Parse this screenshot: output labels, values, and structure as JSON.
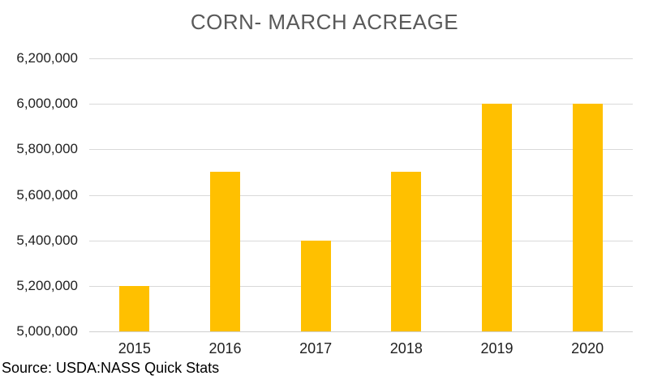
{
  "chart_data": {
    "type": "bar",
    "title": "CORN- MARCH ACREAGE",
    "categories": [
      "2015",
      "2016",
      "2017",
      "2018",
      "2019",
      "2020"
    ],
    "values": [
      5200000,
      5700000,
      5400000,
      5700000,
      6000000,
      6000000
    ],
    "xlabel": "",
    "ylabel": "",
    "ylim": [
      5000000,
      6200000
    ],
    "y_tick_step": 200000,
    "y_tick_labels": [
      "5,000,000",
      "5,200,000",
      "5,400,000",
      "5,600,000",
      "5,800,000",
      "6,000,000",
      "6,200,000"
    ],
    "grid": true,
    "legend": "none",
    "bar_color": "#FFC000",
    "source_note": "Source: USDA:NASS Quick Stats"
  },
  "colors": {
    "bar": "#FFC000",
    "gridline": "#D9D9D9",
    "axis_line": "#CFCFCF",
    "title_text": "#595959",
    "tick_text": "#1F1F1F",
    "source_text": "#000000",
    "background": "#FFFFFF"
  }
}
